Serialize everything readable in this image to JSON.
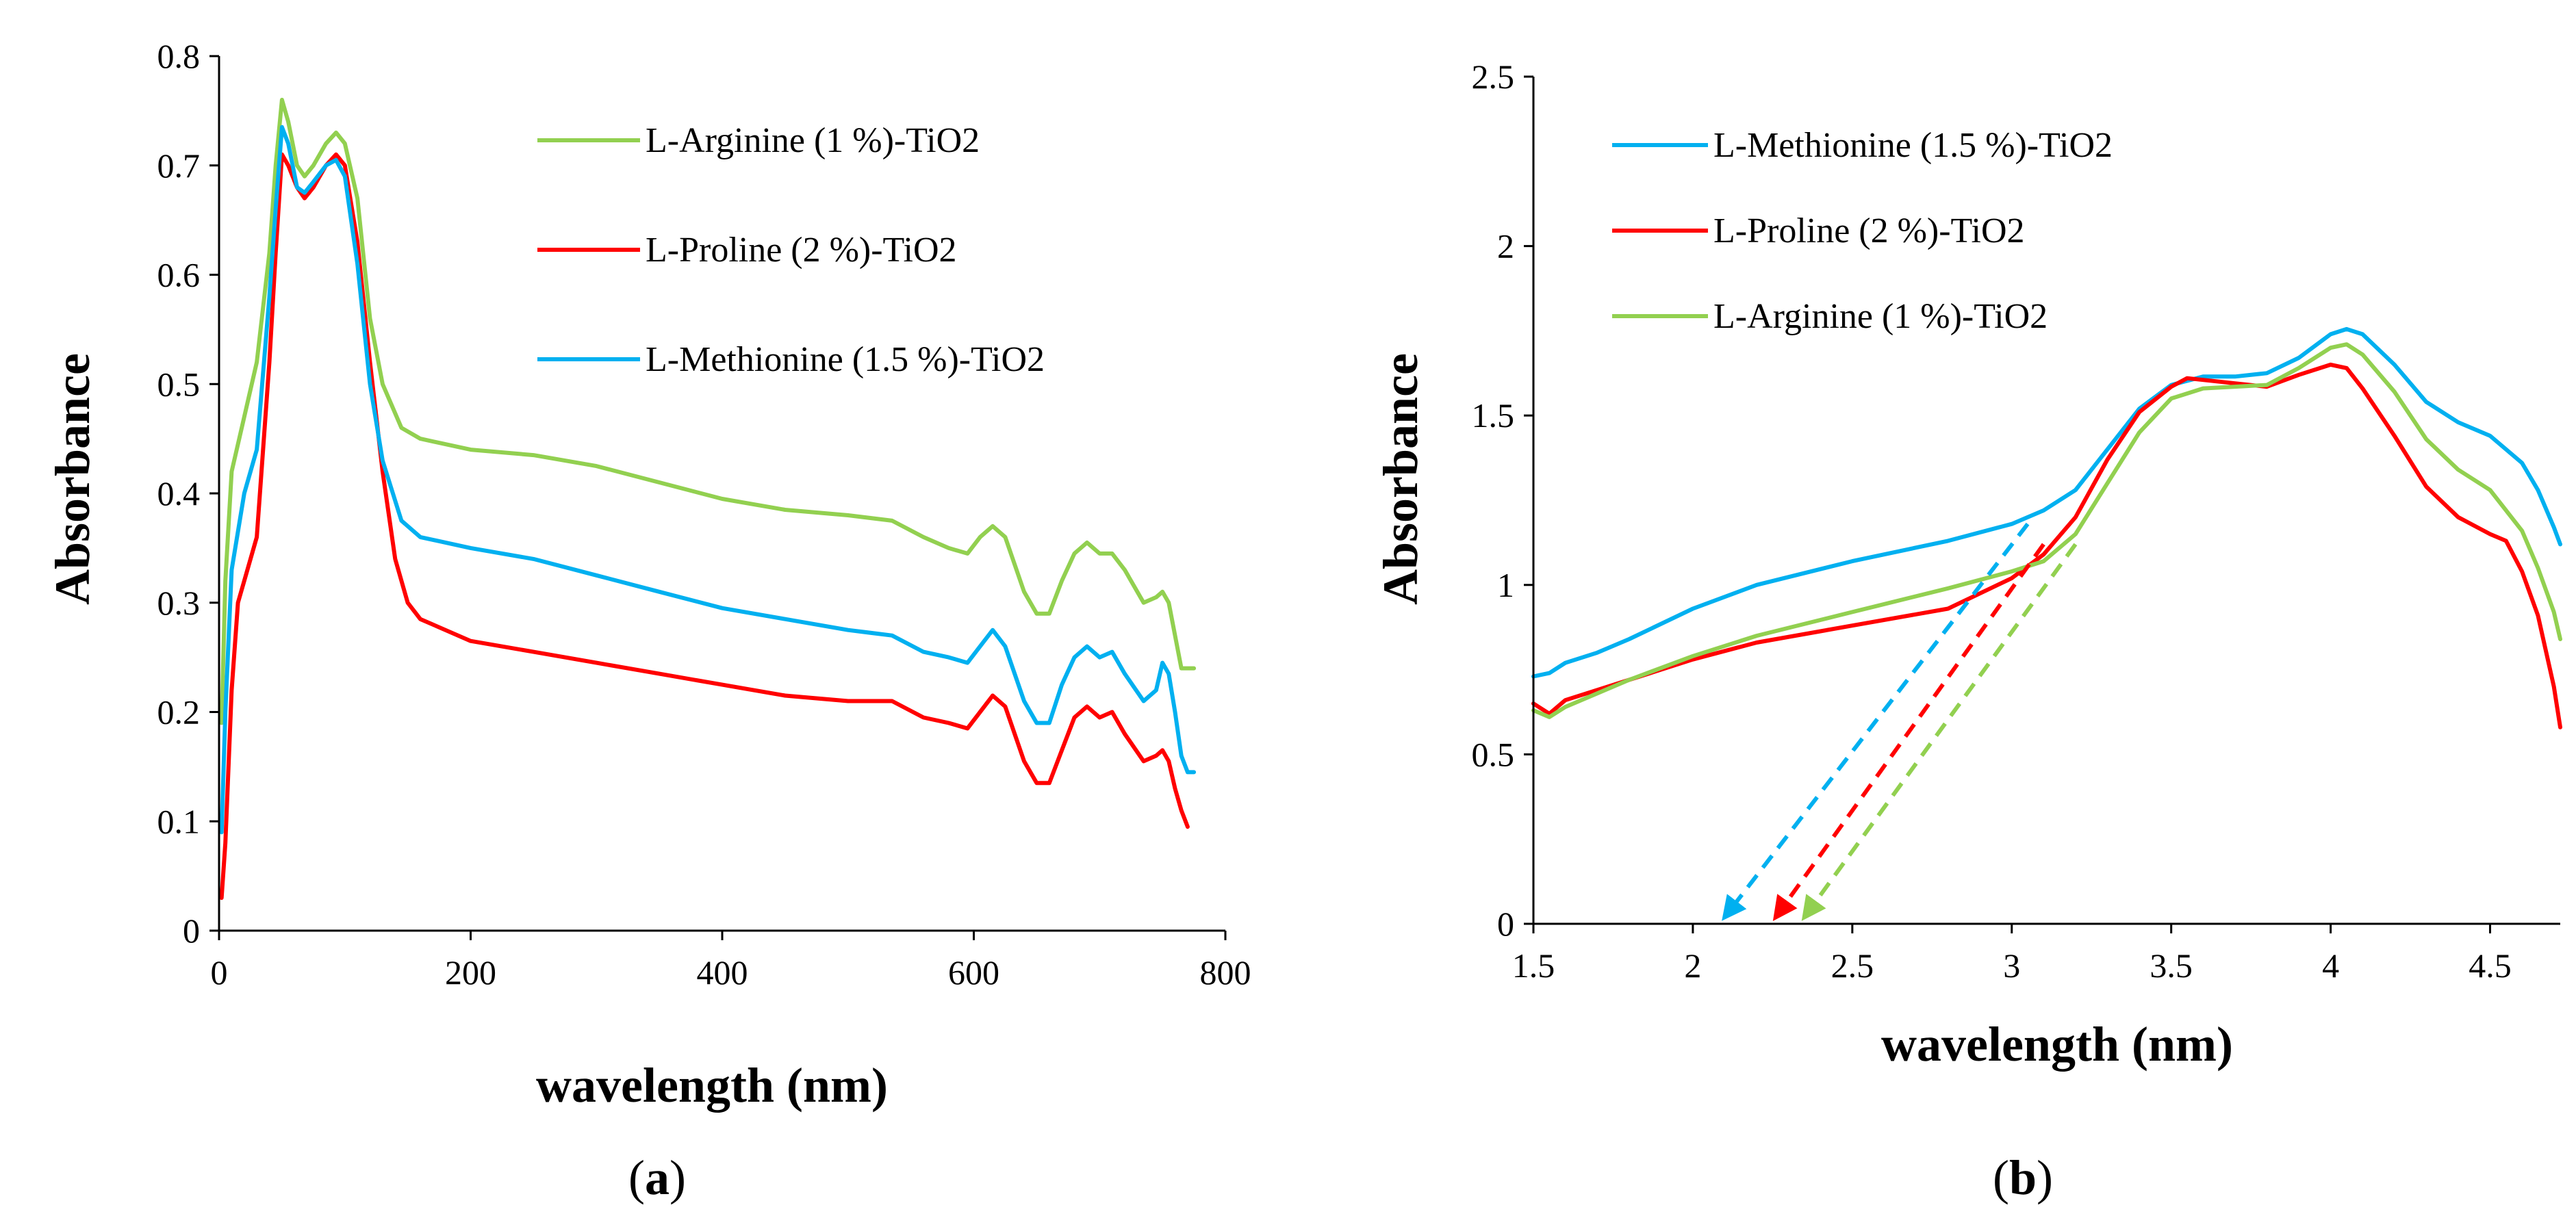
{
  "chart_data": [
    {
      "panel": "a",
      "panel_label": "a",
      "type": "line",
      "title": "",
      "xlabel": "wavelength (nm)",
      "ylabel": "Absorbance",
      "xlim": [
        0,
        800
      ],
      "ylim": [
        0,
        0.8
      ],
      "xticks": [
        0,
        200,
        400,
        600,
        800
      ],
      "xtick_labels": [
        "0",
        "200",
        "400",
        "600",
        "800"
      ],
      "yticks": [
        0,
        0.1,
        0.2,
        0.3,
        0.4,
        0.5,
        0.6,
        0.7,
        0.8
      ],
      "ytick_labels": [
        "0",
        "0.1",
        "0.2",
        "0.3",
        "0.4",
        "0.5",
        "0.6",
        "0.7",
        "0.8"
      ],
      "grid": false,
      "legend_position": "top-right",
      "series": [
        {
          "name": "L-Arginine (1 %)-TiO2",
          "color": "#92D050",
          "points": [
            [
              2,
              0.19
            ],
            [
              5,
              0.32
            ],
            [
              10,
              0.42
            ],
            [
              20,
              0.47
            ],
            [
              30,
              0.52
            ],
            [
              40,
              0.62
            ],
            [
              45,
              0.7
            ],
            [
              50,
              0.76
            ],
            [
              55,
              0.74
            ],
            [
              62,
              0.7
            ],
            [
              68,
              0.69
            ],
            [
              75,
              0.7
            ],
            [
              85,
              0.72
            ],
            [
              93,
              0.73
            ],
            [
              100,
              0.72
            ],
            [
              110,
              0.67
            ],
            [
              120,
              0.56
            ],
            [
              130,
              0.5
            ],
            [
              145,
              0.46
            ],
            [
              160,
              0.45
            ],
            [
              200,
              0.44
            ],
            [
              250,
              0.435
            ],
            [
              300,
              0.425
            ],
            [
              350,
              0.41
            ],
            [
              400,
              0.395
            ],
            [
              450,
              0.385
            ],
            [
              500,
              0.38
            ],
            [
              535,
              0.375
            ],
            [
              560,
              0.36
            ],
            [
              580,
              0.35
            ],
            [
              595,
              0.345
            ],
            [
              605,
              0.36
            ],
            [
              615,
              0.37
            ],
            [
              625,
              0.36
            ],
            [
              640,
              0.31
            ],
            [
              650,
              0.29
            ],
            [
              660,
              0.29
            ],
            [
              670,
              0.32
            ],
            [
              680,
              0.345
            ],
            [
              690,
              0.355
            ],
            [
              700,
              0.345
            ],
            [
              710,
              0.345
            ],
            [
              720,
              0.33
            ],
            [
              735,
              0.3
            ],
            [
              745,
              0.305
            ],
            [
              750,
              0.31
            ],
            [
              755,
              0.3
            ],
            [
              760,
              0.27
            ],
            [
              765,
              0.24
            ],
            [
              775,
              0.24
            ]
          ]
        },
        {
          "name": "L-Proline (2 %)-TiO2",
          "color": "#FF0000",
          "points": [
            [
              2,
              0.03
            ],
            [
              5,
              0.08
            ],
            [
              10,
              0.22
            ],
            [
              15,
              0.3
            ],
            [
              20,
              0.32
            ],
            [
              30,
              0.36
            ],
            [
              40,
              0.52
            ],
            [
              45,
              0.62
            ],
            [
              50,
              0.71
            ],
            [
              55,
              0.7
            ],
            [
              62,
              0.68
            ],
            [
              68,
              0.67
            ],
            [
              75,
              0.68
            ],
            [
              85,
              0.7
            ],
            [
              93,
              0.71
            ],
            [
              100,
              0.7
            ],
            [
              110,
              0.63
            ],
            [
              120,
              0.52
            ],
            [
              130,
              0.42
            ],
            [
              140,
              0.34
            ],
            [
              150,
              0.3
            ],
            [
              160,
              0.285
            ],
            [
              200,
              0.265
            ],
            [
              250,
              0.255
            ],
            [
              300,
              0.245
            ],
            [
              350,
              0.235
            ],
            [
              400,
              0.225
            ],
            [
              450,
              0.215
            ],
            [
              500,
              0.21
            ],
            [
              535,
              0.21
            ],
            [
              560,
              0.195
            ],
            [
              580,
              0.19
            ],
            [
              595,
              0.185
            ],
            [
              605,
              0.2
            ],
            [
              615,
              0.215
            ],
            [
              625,
              0.205
            ],
            [
              640,
              0.155
            ],
            [
              650,
              0.135
            ],
            [
              660,
              0.135
            ],
            [
              670,
              0.165
            ],
            [
              680,
              0.195
            ],
            [
              690,
              0.205
            ],
            [
              700,
              0.195
            ],
            [
              710,
              0.2
            ],
            [
              720,
              0.18
            ],
            [
              735,
              0.155
            ],
            [
              745,
              0.16
            ],
            [
              750,
              0.165
            ],
            [
              755,
              0.155
            ],
            [
              760,
              0.13
            ],
            [
              765,
              0.11
            ],
            [
              770,
              0.095
            ]
          ]
        },
        {
          "name": "L-Methionine (1.5 %)-TiO2",
          "color": "#00B0F0",
          "points": [
            [
              2,
              0.09
            ],
            [
              5,
              0.2
            ],
            [
              10,
              0.33
            ],
            [
              20,
              0.4
            ],
            [
              30,
              0.44
            ],
            [
              40,
              0.58
            ],
            [
              45,
              0.66
            ],
            [
              50,
              0.735
            ],
            [
              55,
              0.72
            ],
            [
              62,
              0.68
            ],
            [
              68,
              0.675
            ],
            [
              75,
              0.685
            ],
            [
              85,
              0.7
            ],
            [
              93,
              0.705
            ],
            [
              100,
              0.69
            ],
            [
              110,
              0.61
            ],
            [
              120,
              0.5
            ],
            [
              130,
              0.43
            ],
            [
              145,
              0.375
            ],
            [
              160,
              0.36
            ],
            [
              200,
              0.35
            ],
            [
              250,
              0.34
            ],
            [
              300,
              0.325
            ],
            [
              350,
              0.31
            ],
            [
              400,
              0.295
            ],
            [
              450,
              0.285
            ],
            [
              500,
              0.275
            ],
            [
              535,
              0.27
            ],
            [
              560,
              0.255
            ],
            [
              580,
              0.25
            ],
            [
              595,
              0.245
            ],
            [
              605,
              0.26
            ],
            [
              615,
              0.275
            ],
            [
              625,
              0.26
            ],
            [
              640,
              0.21
            ],
            [
              650,
              0.19
            ],
            [
              660,
              0.19
            ],
            [
              670,
              0.225
            ],
            [
              680,
              0.25
            ],
            [
              690,
              0.26
            ],
            [
              700,
              0.25
            ],
            [
              710,
              0.255
            ],
            [
              720,
              0.235
            ],
            [
              735,
              0.21
            ],
            [
              745,
              0.22
            ],
            [
              750,
              0.245
            ],
            [
              755,
              0.235
            ],
            [
              760,
              0.2
            ],
            [
              765,
              0.16
            ],
            [
              770,
              0.145
            ],
            [
              775,
              0.145
            ]
          ]
        }
      ]
    },
    {
      "panel": "b",
      "panel_label": "b",
      "type": "line",
      "title": "",
      "xlabel": "wavelength (nm)",
      "ylabel": "Absorbance",
      "xlim": [
        1.5,
        4.72
      ],
      "ylim": [
        0,
        2.5
      ],
      "xticks": [
        1.5,
        2,
        2.5,
        3,
        3.5,
        4,
        4.5
      ],
      "xtick_labels": [
        "1.5",
        "2",
        "2.5",
        "3",
        "3.5",
        "4",
        "4.5"
      ],
      "yticks": [
        0,
        0.5,
        1,
        1.5,
        2,
        2.5
      ],
      "ytick_labels": [
        "0",
        "0.5",
        "1",
        "1.5",
        "2",
        "2.5"
      ],
      "grid": false,
      "legend_position": "top-left",
      "series": [
        {
          "name": "L-Methionine (1.5 %)-TiO2",
          "color": "#00B0F0",
          "points": [
            [
              1.5,
              0.73
            ],
            [
              1.55,
              0.74
            ],
            [
              1.6,
              0.77
            ],
            [
              1.7,
              0.8
            ],
            [
              1.8,
              0.84
            ],
            [
              2.0,
              0.93
            ],
            [
              2.2,
              1.0
            ],
            [
              2.5,
              1.07
            ],
            [
              2.8,
              1.13
            ],
            [
              3.0,
              1.18
            ],
            [
              3.1,
              1.22
            ],
            [
              3.2,
              1.28
            ],
            [
              3.3,
              1.4
            ],
            [
              3.4,
              1.52
            ],
            [
              3.5,
              1.59
            ],
            [
              3.6,
              1.615
            ],
            [
              3.7,
              1.615
            ],
            [
              3.8,
              1.625
            ],
            [
              3.9,
              1.67
            ],
            [
              4.0,
              1.74
            ],
            [
              4.05,
              1.755
            ],
            [
              4.1,
              1.74
            ],
            [
              4.2,
              1.65
            ],
            [
              4.3,
              1.54
            ],
            [
              4.4,
              1.48
            ],
            [
              4.5,
              1.44
            ],
            [
              4.6,
              1.36
            ],
            [
              4.65,
              1.28
            ],
            [
              4.7,
              1.17
            ],
            [
              4.72,
              1.12
            ]
          ]
        },
        {
          "name": "L-Proline (2 %)-TiO2",
          "color": "#FF0000",
          "points": [
            [
              1.5,
              0.65
            ],
            [
              1.55,
              0.62
            ],
            [
              1.6,
              0.66
            ],
            [
              1.8,
              0.72
            ],
            [
              2.0,
              0.78
            ],
            [
              2.2,
              0.83
            ],
            [
              2.5,
              0.88
            ],
            [
              2.8,
              0.93
            ],
            [
              3.0,
              1.02
            ],
            [
              3.1,
              1.09
            ],
            [
              3.2,
              1.2
            ],
            [
              3.3,
              1.37
            ],
            [
              3.4,
              1.51
            ],
            [
              3.5,
              1.585
            ],
            [
              3.55,
              1.61
            ],
            [
              3.6,
              1.605
            ],
            [
              3.7,
              1.595
            ],
            [
              3.8,
              1.585
            ],
            [
              3.9,
              1.62
            ],
            [
              4.0,
              1.65
            ],
            [
              4.05,
              1.64
            ],
            [
              4.1,
              1.58
            ],
            [
              4.2,
              1.44
            ],
            [
              4.3,
              1.29
            ],
            [
              4.4,
              1.2
            ],
            [
              4.5,
              1.15
            ],
            [
              4.55,
              1.13
            ],
            [
              4.6,
              1.04
            ],
            [
              4.65,
              0.91
            ],
            [
              4.7,
              0.7
            ],
            [
              4.72,
              0.58
            ]
          ]
        },
        {
          "name": "L-Arginine (1 %)-TiO2",
          "color": "#92D050",
          "points": [
            [
              1.5,
              0.63
            ],
            [
              1.55,
              0.61
            ],
            [
              1.6,
              0.64
            ],
            [
              1.8,
              0.72
            ],
            [
              2.0,
              0.79
            ],
            [
              2.2,
              0.85
            ],
            [
              2.5,
              0.92
            ],
            [
              2.8,
              0.99
            ],
            [
              3.0,
              1.04
            ],
            [
              3.1,
              1.07
            ],
            [
              3.2,
              1.15
            ],
            [
              3.3,
              1.3
            ],
            [
              3.4,
              1.45
            ],
            [
              3.5,
              1.55
            ],
            [
              3.6,
              1.58
            ],
            [
              3.7,
              1.585
            ],
            [
              3.8,
              1.59
            ],
            [
              3.9,
              1.64
            ],
            [
              4.0,
              1.7
            ],
            [
              4.05,
              1.71
            ],
            [
              4.1,
              1.68
            ],
            [
              4.2,
              1.57
            ],
            [
              4.3,
              1.43
            ],
            [
              4.4,
              1.34
            ],
            [
              4.5,
              1.28
            ],
            [
              4.6,
              1.16
            ],
            [
              4.65,
              1.05
            ],
            [
              4.7,
              0.92
            ],
            [
              4.72,
              0.84
            ]
          ]
        }
      ],
      "annotations": [
        {
          "kind": "tangent-arrow",
          "color": "#00B0F0",
          "from": [
            3.05,
            1.18
          ],
          "to": [
            2.1,
            0.02
          ]
        },
        {
          "kind": "tangent-arrow",
          "color": "#FF0000",
          "from": [
            3.1,
            1.12
          ],
          "to": [
            2.26,
            0.02
          ]
        },
        {
          "kind": "tangent-arrow",
          "color": "#92D050",
          "from": [
            3.2,
            1.12
          ],
          "to": [
            2.35,
            0.02
          ]
        }
      ]
    }
  ]
}
